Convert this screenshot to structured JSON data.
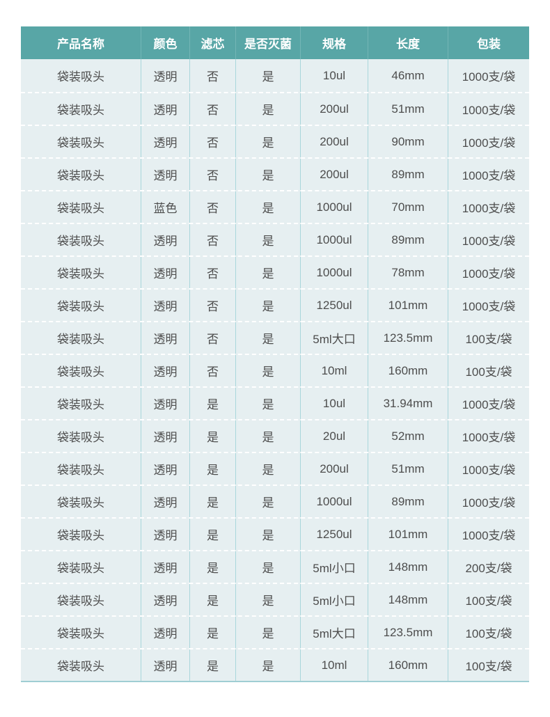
{
  "colors": {
    "header-bg": "#58a6a6",
    "header-text": "#ffffff",
    "header-col-line": "#74b6b6",
    "row-bg": "#e6eff1",
    "row-text": "#4d4d4d",
    "col-line": "#a9d6db",
    "row-dash": "#ffffff",
    "table-bottom": "#9fced3",
    "page-bg": "#ffffff"
  },
  "table": {
    "columns": [
      "产品名称",
      "颜色",
      "滤芯",
      "是否灭菌",
      "规格",
      "长度",
      "包装"
    ],
    "rows": [
      [
        "袋装吸头",
        "透明",
        "否",
        "是",
        "10ul",
        "46mm",
        "1000支/袋"
      ],
      [
        "袋装吸头",
        "透明",
        "否",
        "是",
        "200ul",
        "51mm",
        "1000支/袋"
      ],
      [
        "袋装吸头",
        "透明",
        "否",
        "是",
        "200ul",
        "90mm",
        "1000支/袋"
      ],
      [
        "袋装吸头",
        "透明",
        "否",
        "是",
        "200ul",
        "89mm",
        "1000支/袋"
      ],
      [
        "袋装吸头",
        "蓝色",
        "否",
        "是",
        "1000ul",
        "70mm",
        "1000支/袋"
      ],
      [
        "袋装吸头",
        "透明",
        "否",
        "是",
        "1000ul",
        "89mm",
        "1000支/袋"
      ],
      [
        "袋装吸头",
        "透明",
        "否",
        "是",
        "1000ul",
        "78mm",
        "1000支/袋"
      ],
      [
        "袋装吸头",
        "透明",
        "否",
        "是",
        "1250ul",
        "101mm",
        "1000支/袋"
      ],
      [
        "袋装吸头",
        "透明",
        "否",
        "是",
        "5ml大口",
        "123.5mm",
        "100支/袋"
      ],
      [
        "袋装吸头",
        "透明",
        "否",
        "是",
        "10ml",
        "160mm",
        "100支/袋"
      ],
      [
        "袋装吸头",
        "透明",
        "是",
        "是",
        "10ul",
        "31.94mm",
        "1000支/袋"
      ],
      [
        "袋装吸头",
        "透明",
        "是",
        "是",
        "20ul",
        "52mm",
        "1000支/袋"
      ],
      [
        "袋装吸头",
        "透明",
        "是",
        "是",
        "200ul",
        "51mm",
        "1000支/袋"
      ],
      [
        "袋装吸头",
        "透明",
        "是",
        "是",
        "1000ul",
        "89mm",
        "1000支/袋"
      ],
      [
        "袋装吸头",
        "透明",
        "是",
        "是",
        "1250ul",
        "101mm",
        "1000支/袋"
      ],
      [
        "袋装吸头",
        "透明",
        "是",
        "是",
        "5ml小口",
        "148mm",
        "200支/袋"
      ],
      [
        "袋装吸头",
        "透明",
        "是",
        "是",
        "5ml小口",
        "148mm",
        "100支/袋"
      ],
      [
        "袋装吸头",
        "透明",
        "是",
        "是",
        "5ml大口",
        "123.5mm",
        "100支/袋"
      ],
      [
        "袋装吸头",
        "透明",
        "是",
        "是",
        "10ml",
        "160mm",
        "100支/袋"
      ]
    ]
  }
}
